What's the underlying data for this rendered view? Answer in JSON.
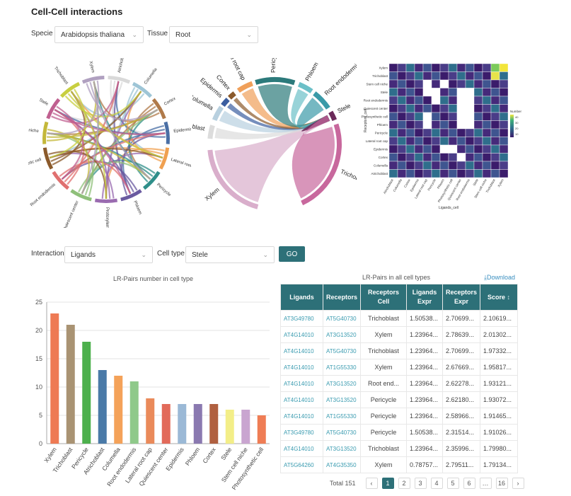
{
  "page": {
    "title": "Cell-Cell interactions"
  },
  "filters": {
    "specie_label": "Specie",
    "specie_value": "Arabidopsis thaliana",
    "tissue_label": "Tissue",
    "tissue_value": "Root",
    "interaction_label": "Interaction",
    "interaction_value": "Ligands",
    "celltype_label": "Cell type",
    "celltype_value": "Stele",
    "go_label": "GO"
  },
  "chord_small": {
    "labels": [
      "Atrichoblast",
      "Columella",
      "Cortex",
      "Epidermis",
      "Lateral root cap",
      "Pericycle",
      "Phloem",
      "Protoxylem cell",
      "Quiescent center",
      "Root endodermis",
      "Photosynthetic cell",
      "Stem cell niche",
      "Stele",
      "Trichoblast",
      "Xylem"
    ],
    "colors": [
      "#d9d9d9",
      "#9ec5d6",
      "#b07a4a",
      "#4a6fa5",
      "#f0a050",
      "#2f8f8a",
      "#6a5aa0",
      "#9a6bb0",
      "#8fc07a",
      "#e07070",
      "#8b5a2b",
      "#c4b83a",
      "#c06090",
      "#c8cf40",
      "#b0a0c0"
    ]
  },
  "chord_big": {
    "labels": [
      "Xylem",
      "Atrichoblast",
      "Columella",
      "Epidermis",
      "Cortex",
      "Lateral root cap",
      "Pericycle",
      "Phloem",
      "Root endodermis",
      "Stele",
      "Trichoblast"
    ],
    "colors": [
      "#d9aecb",
      "#dcdcdc",
      "#b8d0df",
      "#3b5ea0",
      "#8b5a2b",
      "#f0a05a",
      "#2c7a7b",
      "#6cc0c8",
      "#3a9aa8",
      "#6b2a5a",
      "#c8689d"
    ]
  },
  "heatmap": {
    "rows": [
      "Xylem",
      "Trichoblast",
      "Stem cell niche",
      "Stele",
      "Root endodermis",
      "Quiescent center",
      "Photosynthetic cell",
      "Phloem",
      "Pericycle",
      "Lateral root cap",
      "Epidermis",
      "Cortex",
      "Columella",
      "Atrichoblast"
    ],
    "cols": [
      "Atrichoblast",
      "Columella",
      "Cortex",
      "Epidermis",
      "Lateral root cap",
      "Pericycle",
      "Phloem",
      "Photosynthetic cell",
      "Quiescent center",
      "Root endodermis",
      "Stele",
      "Stem cell niche",
      "Trichoblast",
      "Xylem"
    ],
    "xlabel": "Ligands_cell",
    "ylabel": "Receptors_cell",
    "legend_title": "Number",
    "legend_ticks": [
      "10",
      "20",
      "30",
      "40"
    ]
  },
  "chart_data": {
    "type": "bar",
    "title": "LR-Pairs number in cell type",
    "categories": [
      "Xylem",
      "Trichoblast",
      "Pericycle",
      "Atrichoblast",
      "Columella",
      "Root endodermis",
      "Lateral root cap",
      "Quiescent center",
      "Epidermis",
      "Phloem",
      "Cortex",
      "Stele",
      "Stem cell niche",
      "Photosynthetic cell"
    ],
    "values": [
      23,
      21,
      18,
      13,
      12,
      11,
      8,
      7,
      7,
      7,
      7,
      6,
      6,
      5
    ],
    "colors": [
      "#ee7a54",
      "#a99373",
      "#4db04d",
      "#4a7aa8",
      "#f4a259",
      "#8fc98a",
      "#ea8a5a",
      "#e26a5a",
      "#9bb9d6",
      "#8a79b0",
      "#b06040",
      "#f3ee88",
      "#c9a5d0",
      "#ef7d55"
    ],
    "ylim": [
      0,
      25
    ],
    "yticks": [
      0,
      5,
      10,
      15,
      20,
      25
    ],
    "grid": true
  },
  "table": {
    "title": "LR-Pairs in all cell types",
    "download_label": "⤓Download",
    "headers": [
      [
        "Ligands",
        ""
      ],
      [
        "Receptors",
        ""
      ],
      [
        "Receptors",
        "Cell"
      ],
      [
        "Ligands",
        "Expr"
      ],
      [
        "Receptors",
        "Expr"
      ],
      [
        "Score",
        "↕"
      ]
    ],
    "rows": [
      [
        "AT3G49780",
        "AT5G40730",
        "Trichoblast",
        "1.50538...",
        "2.70699...",
        "2.10619..."
      ],
      [
        "AT4G14010",
        "AT3G13520",
        "Xylem",
        "1.23964...",
        "2.78639...",
        "2.01302..."
      ],
      [
        "AT4G14010",
        "AT5G40730",
        "Trichoblast",
        "1.23964...",
        "2.70699...",
        "1.97332..."
      ],
      [
        "AT4G14010",
        "AT1G55330",
        "Xylem",
        "1.23964...",
        "2.67669...",
        "1.95817..."
      ],
      [
        "AT4G14010",
        "AT3G13520",
        "Root end...",
        "1.23964...",
        "2.62278...",
        "1.93121..."
      ],
      [
        "AT4G14010",
        "AT3G13520",
        "Pericycle",
        "1.23964...",
        "2.62180...",
        "1.93072..."
      ],
      [
        "AT4G14010",
        "AT1G55330",
        "Pericycle",
        "1.23964...",
        "2.58966...",
        "1.91465..."
      ],
      [
        "AT3G49780",
        "AT5G40730",
        "Pericycle",
        "1.50538...",
        "2.31514...",
        "1.91026..."
      ],
      [
        "AT4G14010",
        "AT3G13520",
        "Trichoblast",
        "1.23964...",
        "2.35996...",
        "1.79980..."
      ],
      [
        "AT5G64260",
        "AT4G35350",
        "Xylem",
        "0.78757...",
        "2.79511...",
        "1.79134..."
      ]
    ]
  },
  "pagination": {
    "total_label": "Total 151",
    "prev": "‹",
    "next": "›",
    "pages": [
      "1",
      "2",
      "3",
      "4",
      "5",
      "6",
      "…",
      "16"
    ],
    "active": "1"
  }
}
